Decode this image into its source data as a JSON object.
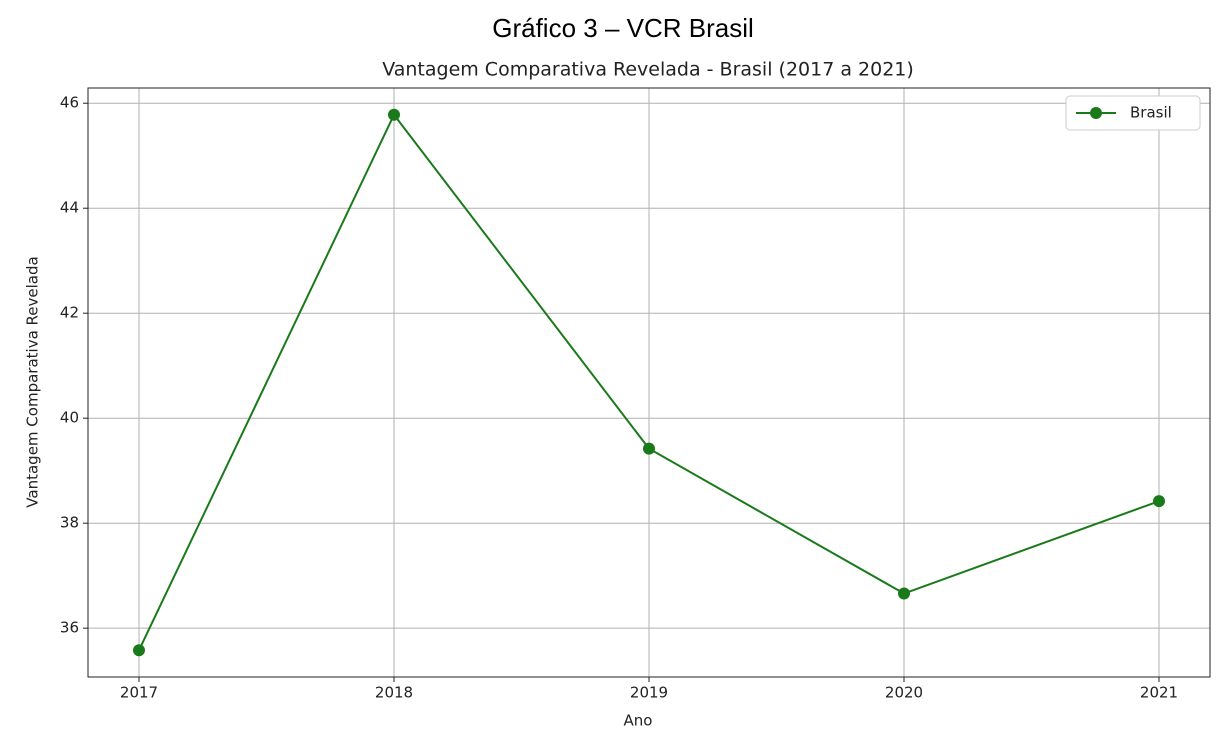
{
  "chart_data": {
    "type": "line",
    "caption": "Gráfico 3 – VCR Brasil",
    "title": "Vantagem Comparativa Revelada - Brasil (2017 a 2021)",
    "x_label": "Ano",
    "y_label": "Vantagem Comparativa Revelada",
    "x": [
      2017,
      2018,
      2019,
      2020,
      2021
    ],
    "series": [
      {
        "name": "Brasil",
        "color": "#1a7a1a",
        "values": [
          35.58,
          45.78,
          39.42,
          36.66,
          38.42
        ]
      }
    ],
    "xlim": [
      2016.8,
      2021.2
    ],
    "xticks": [
      2017,
      2018,
      2019,
      2020,
      2021
    ],
    "ylim": [
      35.07,
      46.29
    ],
    "yticks": [
      36,
      38,
      40,
      42,
      44,
      46
    ],
    "grid": true,
    "legend": "upper-right"
  }
}
